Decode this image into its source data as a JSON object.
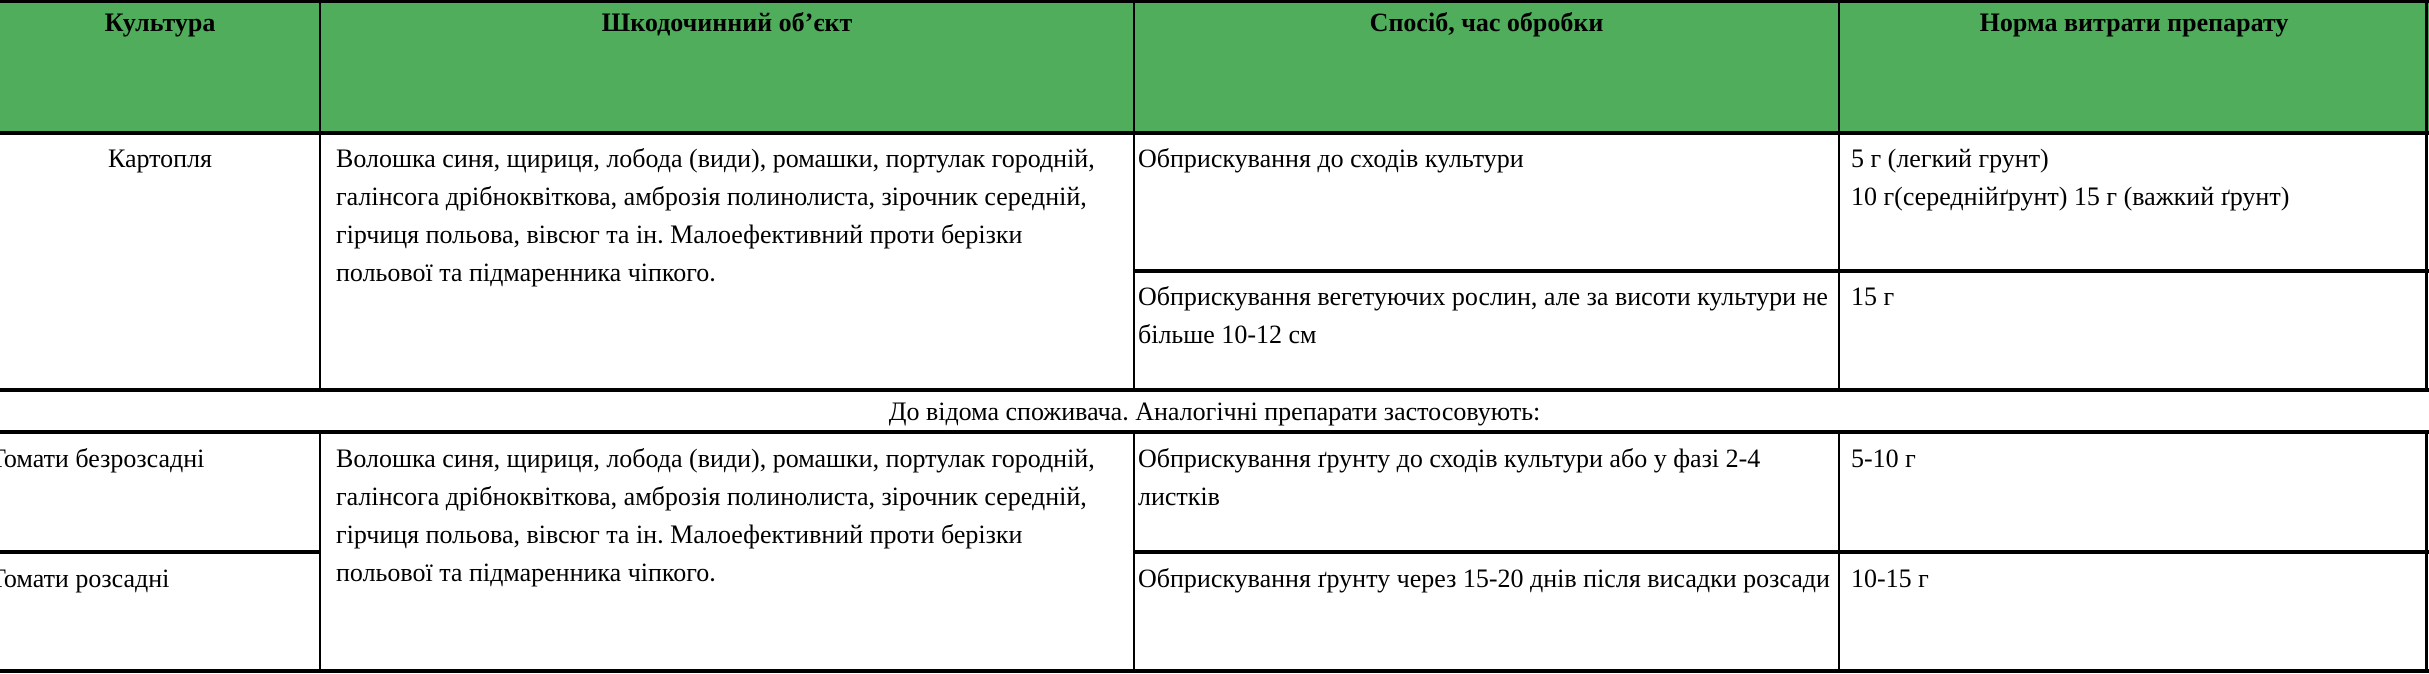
{
  "colors": {
    "header_bg": "#4FAD5B"
  },
  "headers": [
    "Культура",
    "Шкодочинний об’єкт",
    "Спосіб, час обробки",
    "Норма витрати препарату"
  ],
  "potato": {
    "culture": "Картопля",
    "target": "Волошка синя, щириця, лобода (види), ромашки, портулак городній, галінсога дрібноквіткова, амброзія полинолиста, зірочник середній, гірчиця польова, вівсюг та ін. Малоефективний проти берізки польової та підмаренника чіпкого.",
    "methods": [
      {
        "method": "Обприскування до сходів культури",
        "rate_lines": [
          "5 г (легкий грунт)",
          "10 г(середнійґрунт) 15 г (важкий ґрунт)"
        ]
      },
      {
        "method": "Обприскування вегетуючих рослин, але за висоти культури не більше 10-12 см",
        "rate_lines": [
          "15 г"
        ]
      }
    ]
  },
  "note": "До відома споживача. Аналогічні препарати застосовують:",
  "tomatoes": {
    "target": "Волошка синя, щириця, лобода (види), ромашки, портулак городній, галінсога дрібноквіткова, амброзія полинолиста, зірочник середній, гірчиця польова, вівсюг та ін. Малоефективний проти берізки польової та підмаренника чіпкого.",
    "rows": [
      {
        "culture": "Томати безрозсадні",
        "method": "Обприскування ґрунту до сходів культури або у фазі 2-4 листків",
        "rate": "5-10 г"
      },
      {
        "culture": "Томати розсадні",
        "method": "Обприскування ґрунту через 15-20 днів після висадки розсади",
        "rate": "10-15 г"
      }
    ]
  }
}
